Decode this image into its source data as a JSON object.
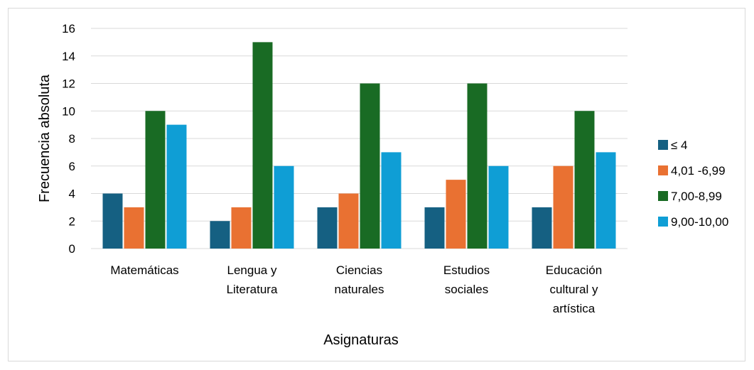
{
  "chart_data": {
    "type": "bar",
    "title": "",
    "xlabel": "Asignaturas",
    "ylabel": "Frecuencia absoluta",
    "ylim": [
      0,
      16
    ],
    "yticks": [
      0,
      2,
      4,
      6,
      8,
      10,
      12,
      14,
      16
    ],
    "grid": "horizontal",
    "legend_position": "right",
    "categories": [
      [
        "Matemáticas"
      ],
      [
        "Lengua y",
        "Literatura"
      ],
      [
        "Ciencias",
        "naturales"
      ],
      [
        "Estudios",
        "sociales"
      ],
      [
        "Educación",
        "cultural y",
        "artística"
      ]
    ],
    "series": [
      {
        "name": "≤ 4",
        "color": "#156082",
        "values": [
          4,
          2,
          3,
          3,
          3
        ]
      },
      {
        "name": "4,01 -6,99",
        "color": "#E97132",
        "values": [
          3,
          3,
          4,
          5,
          6
        ]
      },
      {
        "name": "7,00-8,99",
        "color": "#196B24",
        "values": [
          10,
          15,
          12,
          12,
          10
        ]
      },
      {
        "name": "9,00-10,00",
        "color": "#0F9ED5",
        "values": [
          9,
          6,
          7,
          6,
          7
        ]
      }
    ]
  }
}
